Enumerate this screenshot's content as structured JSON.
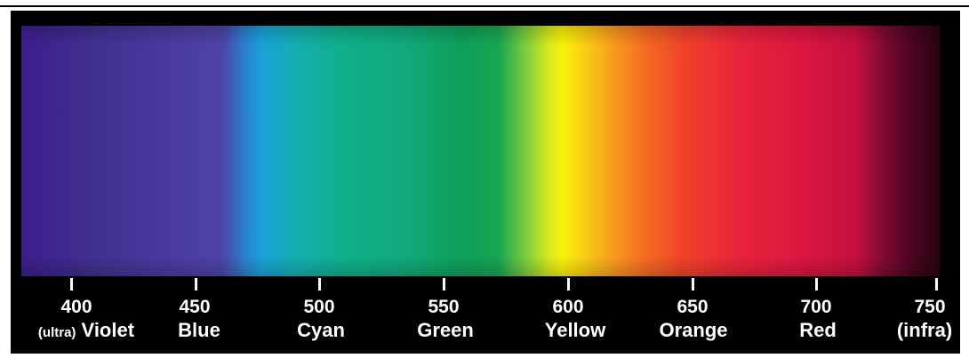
{
  "spectrum": {
    "ticks": [
      {
        "value": "400",
        "label": "Violet",
        "prefix": "(ultra)"
      },
      {
        "value": "450",
        "label": "Blue"
      },
      {
        "value": "500",
        "label": "Cyan"
      },
      {
        "value": "550",
        "label": "Green"
      },
      {
        "value": "600",
        "label": "Yellow"
      },
      {
        "value": "650",
        "label": "Orange"
      },
      {
        "value": "700",
        "label": "Red"
      },
      {
        "value": "750",
        "label": "(infra)"
      }
    ],
    "colors": {
      "violet": "#3b1f8c",
      "blue": "#4d45a8",
      "cyan": "#1aa0d8",
      "green": "#0e9f5a",
      "yellow": "#f9f10a",
      "orange": "#f56a22",
      "red": "#e9243a",
      "infra": "#2a0412"
    }
  }
}
